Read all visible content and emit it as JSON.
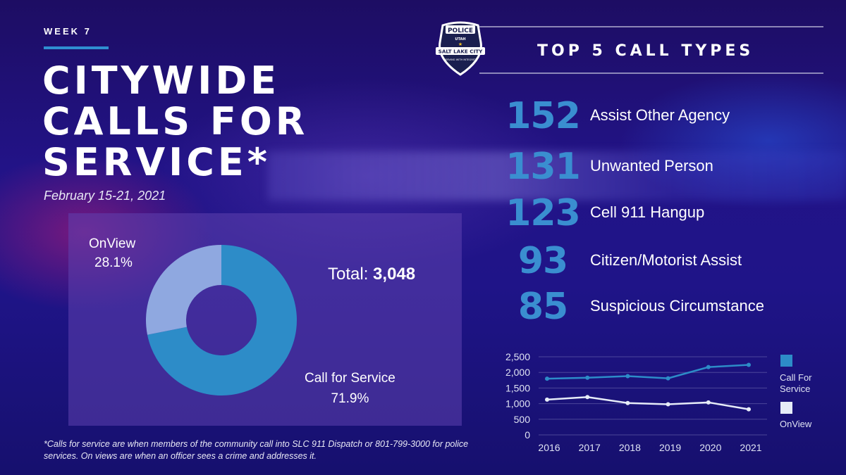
{
  "header": {
    "week": "WEEK 7",
    "title_lines": [
      "CITYWIDE",
      "CALLS FOR",
      "SERVICE*"
    ],
    "date_range": "February 15-21, 2021"
  },
  "logo": {
    "top": "POLICE",
    "state": "UTAH",
    "city": "SALT LAKE CITY",
    "motto": "SERVING WITH INTEGRITY"
  },
  "colors": {
    "accent_blue": "#2f8fd1",
    "call_for_service": "#2d8cc8",
    "onview": "#8fa8e0",
    "onview_line": "#e6ecf8",
    "number_blue": "#3a8ed0"
  },
  "top5": {
    "title": "TOP 5 CALL TYPES",
    "items": [
      {
        "count": "152",
        "label": "Assist Other Agency"
      },
      {
        "count": "131",
        "label": "Unwanted Person"
      },
      {
        "count": "123",
        "label": "Cell 911 Hangup"
      },
      {
        "count": "93",
        "label": "Citizen/Motorist Assist"
      },
      {
        "count": "85",
        "label": "Suspicious Circumstance"
      }
    ]
  },
  "chart_data": [
    {
      "type": "pie",
      "donut": true,
      "total_label": "Total:",
      "total_value": "3,048",
      "slices": [
        {
          "name": "Call for Service",
          "value": 71.9,
          "label": "71.9%"
        },
        {
          "name": "OnView",
          "value": 28.1,
          "label": "28.1%"
        }
      ]
    },
    {
      "type": "line",
      "x": [
        "2016",
        "2017",
        "2018",
        "2019",
        "2020",
        "2021"
      ],
      "series": [
        {
          "name": "Call For Service",
          "values": [
            1800,
            1830,
            1880,
            1810,
            2170,
            2240
          ]
        },
        {
          "name": "OnView",
          "values": [
            1130,
            1210,
            1020,
            980,
            1040,
            820
          ]
        }
      ],
      "ylim": [
        0,
        2500
      ],
      "yticks": [
        "2,500",
        "2,000",
        "1,500",
        "1,000",
        "500",
        "0"
      ],
      "ytick_values": [
        2500,
        2000,
        1500,
        1000,
        500,
        0
      ],
      "grid": true,
      "legend_position": "right",
      "legend": [
        {
          "lines": [
            "Call For",
            "Service"
          ]
        },
        {
          "lines": [
            "OnView"
          ]
        }
      ]
    }
  ],
  "footnote": "*Calls for service are when members of the community call into SLC 911 Dispatch or 801-799-3000 for police services. On views are when an officer sees a crime and addresses it."
}
